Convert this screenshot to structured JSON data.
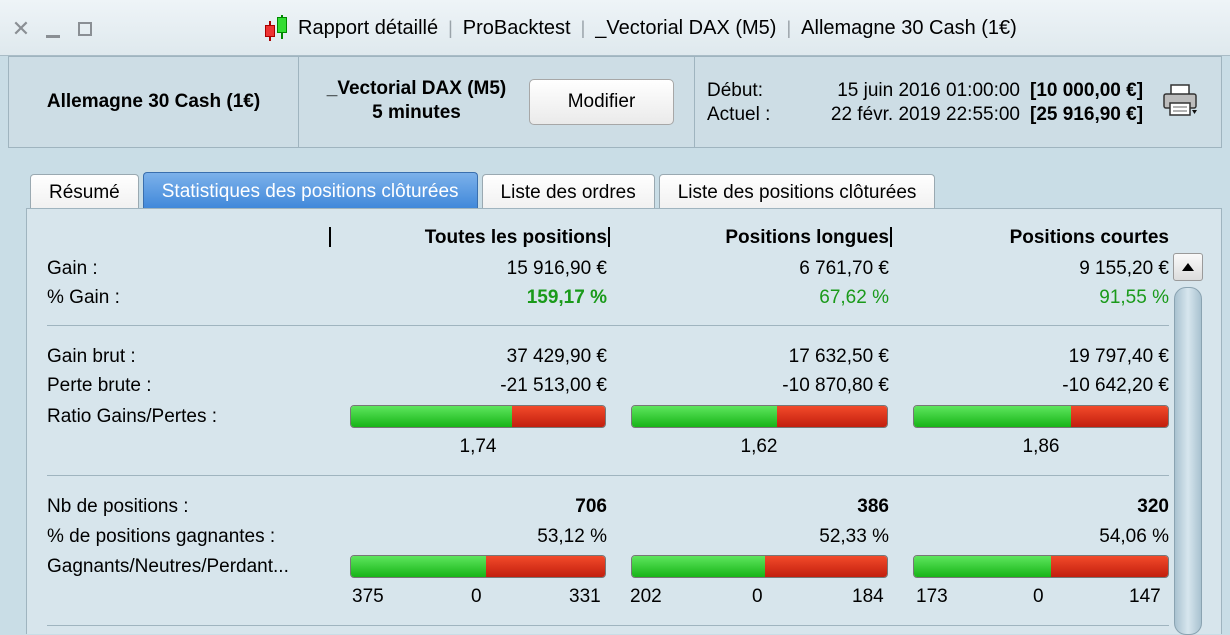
{
  "titlebar": {
    "crumbs": [
      "Rapport détaillé",
      "ProBacktest",
      "_Vectorial DAX (M5)",
      "Allemagne 30 Cash (1€)"
    ]
  },
  "header": {
    "instrument": "Allemagne 30 Cash (1€)",
    "system_name": "_Vectorial DAX (M5)",
    "timeframe": "5 minutes",
    "modify_label": "Modifier",
    "start_label": "Début:",
    "start_date": "15 juin 2016 01:00:00",
    "start_amount": "[10 000,00 €]",
    "current_label": "Actuel :",
    "current_date": "22 févr. 2019 22:55:00",
    "current_amount": "[25 916,90 €]",
    "print_icon": "printer-icon"
  },
  "tabs": [
    "Résumé",
    "Statistiques des positions clôturées",
    "Liste des ordres",
    "Liste des positions clôturées"
  ],
  "active_tab": 1,
  "columns": [
    "Toutes les positions",
    "Positions longues",
    "Positions courtes"
  ],
  "rows": {
    "gain": {
      "label": "Gain :",
      "values": [
        "15 916,90 €",
        "6 761,70 €",
        "9 155,20 €"
      ]
    },
    "pct_gain": {
      "label": "% Gain :",
      "values": [
        "159,17 %",
        "67,62 %",
        "91,55 %"
      ]
    },
    "gross_gain": {
      "label": "Gain brut :",
      "values": [
        "37 429,90 €",
        "17 632,50 €",
        "19 797,40 €"
      ]
    },
    "gross_loss": {
      "label": "Perte brute :",
      "values": [
        "-21 513,00 €",
        "-10 870,80 €",
        "-10 642,20 €"
      ]
    },
    "ratio": {
      "label": "Ratio Gains/Pertes :",
      "values": [
        "1,74",
        "1,62",
        "1,86"
      ],
      "green_fraction": [
        0.635,
        0.57,
        0.62
      ]
    },
    "nb_positions": {
      "label": "Nb de positions :",
      "values": [
        "706",
        "386",
        "320"
      ]
    },
    "pct_winning": {
      "label": "% de positions gagnantes :",
      "values": [
        "53,12 %",
        "52,33 %",
        "54,06 %"
      ]
    },
    "win_neutral_loss": {
      "label": "Gagnants/Neutres/Perdant...",
      "values": [
        [
          "375",
          "0",
          "331"
        ],
        [
          "202",
          "0",
          "184"
        ],
        [
          "173",
          "0",
          "147"
        ]
      ],
      "green_fraction": [
        0.531,
        0.523,
        0.541
      ]
    }
  },
  "colors": {
    "positive": "#1a9a1a",
    "bar_green": "#17b417",
    "bar_red": "#c21f0e",
    "active_tab": "#3d86d9"
  }
}
